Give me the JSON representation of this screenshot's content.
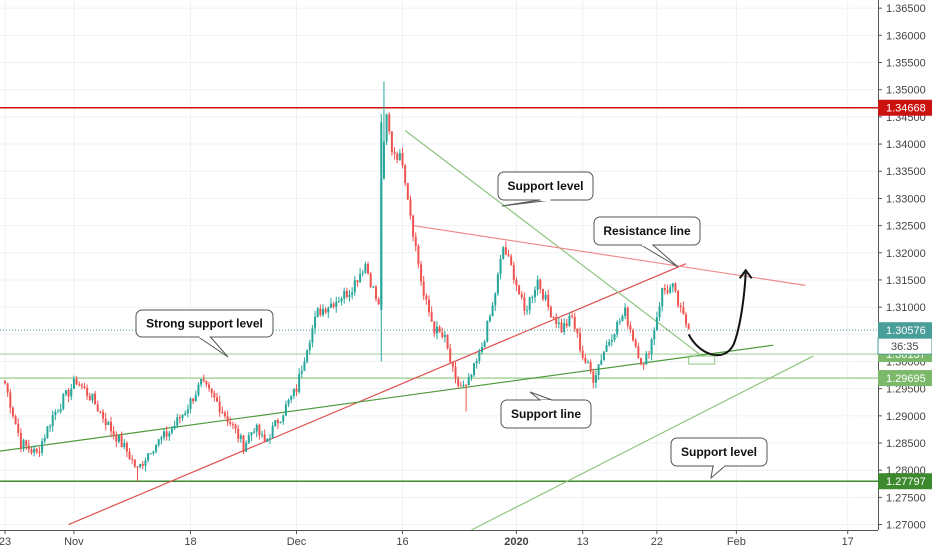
{
  "chart_data": {
    "type": "candlestick",
    "y_axis": {
      "ticks": [
        "1.36500",
        "1.36000",
        "1.35500",
        "1.35000",
        "1.34500",
        "1.34000",
        "1.33500",
        "1.33000",
        "1.32500",
        "1.32000",
        "1.31500",
        "1.31000",
        "1.30500",
        "1.30000",
        "1.29500",
        "1.29000",
        "1.28500",
        "1.28000",
        "1.27500",
        "1.27000"
      ],
      "range": [
        1.269,
        1.3665
      ]
    },
    "x_axis": {
      "ticks": [
        {
          "label": "23",
          "i": 0
        },
        {
          "label": "Nov",
          "i": 26
        },
        {
          "label": "18",
          "i": 70
        },
        {
          "label": "Dec",
          "i": 110
        },
        {
          "label": "16",
          "i": 150
        },
        {
          "label": "2020",
          "i": 193,
          "bold": true
        },
        {
          "label": "13",
          "i": 218
        },
        {
          "label": "22",
          "i": 246
        },
        {
          "label": "Feb",
          "i": 276
        },
        {
          "label": "17",
          "i": 318
        }
      ]
    },
    "price_tags": [
      {
        "value": 1.34668,
        "label": "1.34668",
        "color": "#cc1111"
      },
      {
        "value": 1.30576,
        "label": "1.30576",
        "color": "#4a9e9a"
      },
      {
        "value": 1.30137,
        "label": "1.30137",
        "color": "#7cb86a"
      },
      {
        "value": 1.29695,
        "label": "1.29695",
        "color": "#7cb86a"
      },
      {
        "value": 1.27797,
        "label": "1.27797",
        "color": "#3d8a2e"
      }
    ],
    "countdown": "36:35",
    "annotations": [
      {
        "text": "Support level"
      },
      {
        "text": "Resistance line"
      },
      {
        "text": "Strong support level"
      },
      {
        "text": "Support line"
      },
      {
        "text": "Support level"
      }
    ],
    "anchors": [
      {
        "i": 0,
        "v": 1.296
      },
      {
        "i": 6,
        "v": 1.285
      },
      {
        "i": 12,
        "v": 1.283
      },
      {
        "i": 18,
        "v": 1.29
      },
      {
        "i": 22,
        "v": 1.293
      },
      {
        "i": 27,
        "v": 1.2965
      },
      {
        "i": 33,
        "v": 1.293
      },
      {
        "i": 40,
        "v": 1.2875
      },
      {
        "i": 46,
        "v": 1.2835
      },
      {
        "i": 50,
        "v": 1.28
      },
      {
        "i": 55,
        "v": 1.284
      },
      {
        "i": 62,
        "v": 1.287
      },
      {
        "i": 68,
        "v": 1.291
      },
      {
        "i": 74,
        "v": 1.296
      },
      {
        "i": 80,
        "v": 1.2925
      },
      {
        "i": 86,
        "v": 1.288
      },
      {
        "i": 90,
        "v": 1.2845
      },
      {
        "i": 94,
        "v": 1.288
      },
      {
        "i": 98,
        "v": 1.285
      },
      {
        "i": 104,
        "v": 1.29
      },
      {
        "i": 110,
        "v": 1.295
      },
      {
        "i": 114,
        "v": 1.303
      },
      {
        "i": 118,
        "v": 1.309
      },
      {
        "i": 124,
        "v": 1.311
      },
      {
        "i": 130,
        "v": 1.313
      },
      {
        "i": 136,
        "v": 1.318
      },
      {
        "i": 141,
        "v": 1.31
      },
      {
        "i": 142,
        "v": 1.334
      },
      {
        "i": 144,
        "v": 1.345
      },
      {
        "i": 146,
        "v": 1.339
      },
      {
        "i": 150,
        "v": 1.337
      },
      {
        "i": 154,
        "v": 1.324
      },
      {
        "i": 158,
        "v": 1.312
      },
      {
        "i": 162,
        "v": 1.306
      },
      {
        "i": 166,
        "v": 1.304
      },
      {
        "i": 170,
        "v": 1.296
      },
      {
        "i": 174,
        "v": 1.295
      },
      {
        "i": 179,
        "v": 1.301
      },
      {
        "i": 184,
        "v": 1.31
      },
      {
        "i": 188,
        "v": 1.321
      },
      {
        "i": 192,
        "v": 1.316
      },
      {
        "i": 196,
        "v": 1.309
      },
      {
        "i": 201,
        "v": 1.315
      },
      {
        "i": 205,
        "v": 1.31
      },
      {
        "i": 210,
        "v": 1.306
      },
      {
        "i": 214,
        "v": 1.308
      },
      {
        "i": 218,
        "v": 1.301
      },
      {
        "i": 222,
        "v": 1.297
      },
      {
        "i": 226,
        "v": 1.302
      },
      {
        "i": 230,
        "v": 1.306
      },
      {
        "i": 234,
        "v": 1.309
      },
      {
        "i": 238,
        "v": 1.303
      },
      {
        "i": 241,
        "v": 1.299
      },
      {
        "i": 244,
        "v": 1.304
      },
      {
        "i": 248,
        "v": 1.313
      },
      {
        "i": 252,
        "v": 1.3135
      },
      {
        "i": 255,
        "v": 1.309
      },
      {
        "i": 258,
        "v": 1.306
      }
    ],
    "lines": [
      {
        "name": "resistance-horizontal",
        "from": {
          "i": -2,
          "v": 1.34668
        },
        "to": {
          "i": 345,
          "v": 1.34668
        },
        "color": "#cc1111"
      },
      {
        "name": "support-horizontal-1",
        "from": {
          "i": -2,
          "v": 1.30137
        },
        "to": {
          "i": 345,
          "v": 1.30137
        },
        "color": "#a7d29a"
      },
      {
        "name": "support-horizontal-2",
        "from": {
          "i": -2,
          "v": 1.29695
        },
        "to": {
          "i": 345,
          "v": 1.29695
        },
        "color": "#8cc47c"
      },
      {
        "name": "support-horizontal-3",
        "from": {
          "i": -2,
          "v": 1.27797
        },
        "to": {
          "i": 345,
          "v": 1.27797
        },
        "color": "#3d8a2e"
      },
      {
        "name": "red-trendline",
        "from": {
          "i": 24,
          "v": 1.27
        },
        "to": {
          "i": 257,
          "v": 1.318
        },
        "color": "#e05050"
      },
      {
        "name": "green-trendline-long",
        "from": {
          "i": -2,
          "v": 1.2835
        },
        "to": {
          "i": 290,
          "v": 1.303
        },
        "color": "#4f9a3e"
      },
      {
        "name": "green-trendline-parallel",
        "from": {
          "i": 176,
          "v": 1.269
        },
        "to": {
          "i": 305,
          "v": 1.301
        },
        "color": "#8cc47c"
      },
      {
        "name": "descending-green-line",
        "from": {
          "i": 151,
          "v": 1.3425
        },
        "to": {
          "i": 263,
          "v": 1.301
        },
        "color": "#8cc47c"
      },
      {
        "name": "pink-resistance-line",
        "from": {
          "i": 154,
          "v": 1.325
        },
        "to": {
          "i": 302,
          "v": 1.314
        },
        "color": "#f08a8a"
      }
    ]
  }
}
